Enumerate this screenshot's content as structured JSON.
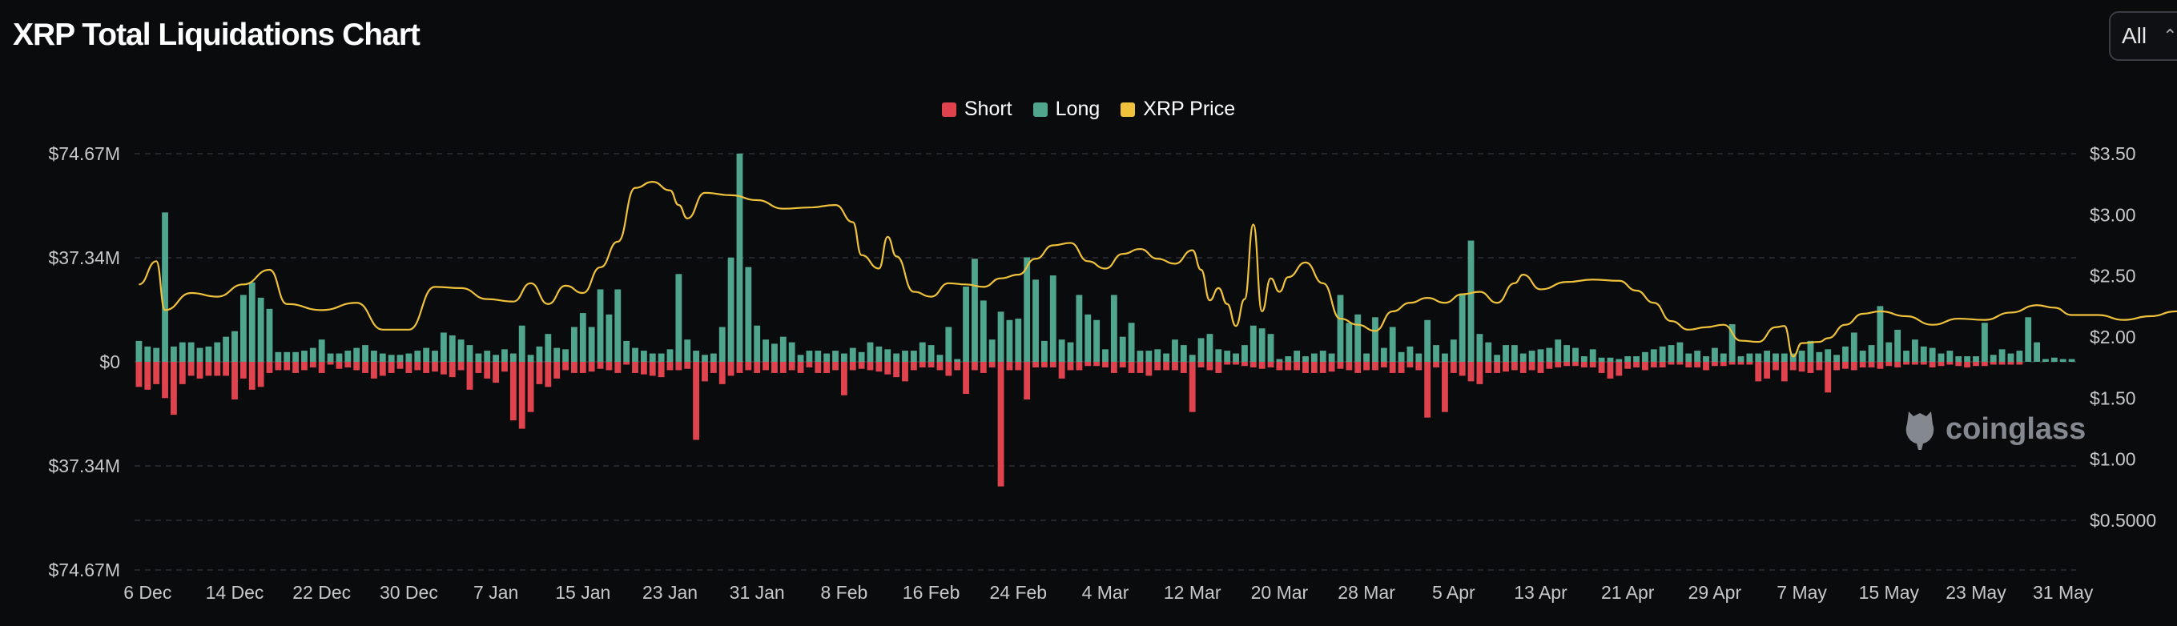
{
  "header": {
    "title": "XRP Total Liquidations Chart"
  },
  "range_select": {
    "value": "All"
  },
  "legend": [
    {
      "label": "Short",
      "color": "#e0434e"
    },
    {
      "label": "Long",
      "color": "#4fa58d"
    },
    {
      "label": "XRP Price",
      "color": "#f0c23b"
    }
  ],
  "watermark": {
    "text": "coinglass",
    "icon": "coinglass-logo-icon"
  },
  "colors": {
    "short": "#e0434e",
    "long": "#4fa58d",
    "price": "#f0c23b",
    "grid": "#2c2f36",
    "axis_text": "#c8c8c8"
  },
  "chart_data": {
    "type": "bar",
    "title": "XRP Total Liquidations Chart",
    "x_tick_labels": [
      "6 Dec",
      "14 Dec",
      "22 Dec",
      "30 Dec",
      "7 Jan",
      "15 Jan",
      "23 Jan",
      "31 Jan",
      "8 Feb",
      "16 Feb",
      "24 Feb",
      "4 Mar",
      "12 Mar",
      "20 Mar",
      "28 Mar",
      "5 Apr",
      "13 Apr",
      "21 Apr",
      "29 Apr",
      "7 May",
      "15 May",
      "23 May",
      "31 May"
    ],
    "y_left_tick_labels": [
      "$74.67M",
      "$37.34M",
      "$0",
      "$37.34M",
      "$74.67M"
    ],
    "y_left_range": [
      -74.67,
      74.67
    ],
    "y_right_tick_labels": [
      "$3.50",
      "$3.00",
      "$2.50",
      "$2.00",
      "$1.50",
      "$1.00",
      "$0.5000"
    ],
    "y_right_range": [
      0.1,
      3.5
    ],
    "grid": true,
    "legend_position": "top-center",
    "series": [
      {
        "name": "Long",
        "unit": "USD M",
        "values": [
          7.5,
          5.5,
          5.0,
          53.6,
          5.5,
          7.0,
          7.0,
          5.0,
          5.5,
          7.0,
          9.0,
          11.0,
          24.0,
          28.5,
          23.0,
          19.0,
          3.5,
          3.5,
          3.5,
          4.0,
          5.0,
          8.0,
          3.0,
          3.0,
          4.0,
          5.0,
          6.0,
          4.0,
          3.0,
          2.5,
          2.5,
          3.0,
          4.0,
          5.0,
          4.0,
          10.5,
          9.5,
          8.0,
          6.0,
          3.0,
          4.0,
          2.5,
          4.5,
          3.0,
          13.0,
          2.5,
          5.5,
          10.0,
          5.0,
          4.5,
          12.5,
          17.5,
          12.5,
          26.0,
          17.0,
          26.0,
          7.5,
          5.0,
          4.0,
          3.0,
          3.0,
          4.5,
          31.5,
          8.0,
          4.0,
          2.5,
          3.0,
          12.5,
          37.4,
          74.7,
          34.0,
          13.0,
          8.0,
          6.5,
          9.0,
          7.0,
          2.5,
          4.0,
          4.0,
          3.0,
          4.0,
          3.0,
          5.0,
          3.5,
          7.0,
          5.5,
          4.5,
          3.0,
          4.0,
          4.0,
          7.0,
          6.0,
          2.5,
          12.5,
          1.0,
          27.0,
          37.0,
          22.0,
          8.0,
          18.0,
          15.0,
          15.5,
          37.5,
          29.5,
          7.5,
          31.0,
          8.0,
          7.0,
          24.0,
          17.0,
          15.0,
          4.5,
          24.0,
          9.0,
          14.0,
          4.0,
          4.0,
          4.5,
          3.0,
          8.0,
          6.0,
          2.5,
          8.5,
          10.0,
          4.5,
          4.0,
          3.0,
          6.0,
          13.0,
          12.0,
          10.0,
          1.0,
          2.0,
          4.0,
          2.0,
          3.0,
          4.0,
          3.0,
          24.0,
          14.0,
          17.0,
          3.0,
          16.0,
          5.0,
          12.5,
          3.5,
          5.5,
          3.0,
          15.0,
          6.0,
          3.0,
          8.0,
          24.5,
          43.5,
          10.0,
          7.0,
          2.5,
          6.0,
          6.0,
          3.0,
          4.0,
          4.5,
          5.0,
          8.0,
          6.0,
          5.0,
          2.0,
          4.5,
          1.5,
          1.5,
          1.0,
          2.0,
          2.0,
          3.5,
          4.5,
          5.5,
          6.0,
          7.0,
          3.0,
          4.0,
          2.0,
          5.0,
          3.0,
          13.5,
          2.0,
          3.0,
          3.0,
          4.0,
          3.0,
          3.0,
          3.0,
          4.0,
          7.5,
          3.5,
          4.5,
          2.5,
          5.5,
          10.5,
          4.0,
          6.0,
          20.0,
          7.0,
          11.5,
          4.0,
          8.0,
          5.5,
          5.0,
          3.0,
          4.0,
          2.0,
          2.0,
          2.0,
          14.0,
          2.5,
          4.5,
          3.0,
          4.0,
          16.0,
          7.0,
          1.0,
          1.5,
          1.0,
          1.0
        ]
      },
      {
        "name": "Short",
        "unit": "USD M",
        "values": [
          9.0,
          10.0,
          8.0,
          13.0,
          19.0,
          8.0,
          5.0,
          6.0,
          5.0,
          5.0,
          5.0,
          13.5,
          6.0,
          10.0,
          9.0,
          4.0,
          3.0,
          3.0,
          4.0,
          3.0,
          2.0,
          4.0,
          1.0,
          2.5,
          2.0,
          3.0,
          4.0,
          6.0,
          5.0,
          4.0,
          2.5,
          4.0,
          3.0,
          4.0,
          3.5,
          4.5,
          5.5,
          3.0,
          10.0,
          4.0,
          6.0,
          7.5,
          3.5,
          21.0,
          24.0,
          18.0,
          8.0,
          9.0,
          6.0,
          3.0,
          4.0,
          4.0,
          3.5,
          2.5,
          3.0,
          4.0,
          1.0,
          4.0,
          4.5,
          5.0,
          5.5,
          3.0,
          3.0,
          2.5,
          28.0,
          7.0,
          4.0,
          8.0,
          5.0,
          4.0,
          3.0,
          4.0,
          3.0,
          4.0,
          4.0,
          3.0,
          4.0,
          2.0,
          4.0,
          4.0,
          3.0,
          12.0,
          3.0,
          2.5,
          3.0,
          3.5,
          4.5,
          5.5,
          7.0,
          3.0,
          2.0,
          2.0,
          3.0,
          5.0,
          3.0,
          11.5,
          3.0,
          4.0,
          2.0,
          44.7,
          3.0,
          3.0,
          13.5,
          2.0,
          2.0,
          2.0,
          6.0,
          3.0,
          3.0,
          1.5,
          1.5,
          2.0,
          4.0,
          2.0,
          4.0,
          4.0,
          5.0,
          3.0,
          3.0,
          3.0,
          4.0,
          18.0,
          2.0,
          3.0,
          4.0,
          1.0,
          1.0,
          1.5,
          2.0,
          2.5,
          2.0,
          3.0,
          3.0,
          3.0,
          4.0,
          4.0,
          4.0,
          3.5,
          2.5,
          3.0,
          4.0,
          3.0,
          3.0,
          2.0,
          4.0,
          4.0,
          2.0,
          3.0,
          20.0,
          2.0,
          18.0,
          4.0,
          5.0,
          7.0,
          8.0,
          4.0,
          4.0,
          3.5,
          3.0,
          4.0,
          3.0,
          4.0,
          2.5,
          2.0,
          1.5,
          1.5,
          2.0,
          2.0,
          4.0,
          6.0,
          5.0,
          2.5,
          2.0,
          3.0,
          2.0,
          2.0,
          1.0,
          1.0,
          2.0,
          2.0,
          3.0,
          1.5,
          1.5,
          1.0,
          1.0,
          1.0,
          7.0,
          6.0,
          3.0,
          7.0,
          3.0,
          3.5,
          4.0,
          3.0,
          11.0,
          3.0,
          2.5,
          3.0,
          2.0,
          2.0,
          2.5,
          1.5,
          2.0,
          1.0,
          1.0,
          1.0,
          2.0,
          1.5,
          1.0,
          1.5,
          2.0,
          1.5,
          1.5,
          1.0,
          1.0,
          1.0,
          1.0
        ]
      },
      {
        "name": "XRP Price",
        "unit": "USD",
        "axis": "right",
        "points": [
          [
            0,
            2.43
          ],
          [
            2,
            2.62
          ],
          [
            3,
            2.22
          ],
          [
            6,
            2.36
          ],
          [
            9,
            2.33
          ],
          [
            12,
            2.43
          ],
          [
            15,
            2.55
          ],
          [
            17,
            2.27
          ],
          [
            21,
            2.22
          ],
          [
            25,
            2.28
          ],
          [
            28,
            2.06
          ],
          [
            31,
            2.06
          ],
          [
            34,
            2.41
          ],
          [
            37,
            2.4
          ],
          [
            40,
            2.31
          ],
          [
            43,
            2.29
          ],
          [
            45,
            2.44
          ],
          [
            47,
            2.27
          ],
          [
            49,
            2.42
          ],
          [
            51,
            2.36
          ],
          [
            53,
            2.57
          ],
          [
            55,
            2.78
          ],
          [
            57,
            3.22
          ],
          [
            59,
            3.27
          ],
          [
            61,
            3.2
          ],
          [
            62,
            3.08
          ],
          [
            63,
            2.97
          ],
          [
            65,
            3.18
          ],
          [
            68,
            3.16
          ],
          [
            71,
            3.12
          ],
          [
            74,
            3.05
          ],
          [
            77,
            3.06
          ],
          [
            80,
            3.08
          ],
          [
            82,
            2.94
          ],
          [
            83,
            2.67
          ],
          [
            85,
            2.56
          ],
          [
            86,
            2.82
          ],
          [
            87,
            2.66
          ],
          [
            89,
            2.37
          ],
          [
            91,
            2.33
          ],
          [
            93,
            2.44
          ],
          [
            95,
            2.43
          ],
          [
            97,
            2.41
          ],
          [
            99,
            2.48
          ],
          [
            101,
            2.51
          ],
          [
            103,
            2.64
          ],
          [
            105,
            2.75
          ],
          [
            107,
            2.77
          ],
          [
            109,
            2.62
          ],
          [
            111,
            2.56
          ],
          [
            113,
            2.68
          ],
          [
            115,
            2.72
          ],
          [
            117,
            2.64
          ],
          [
            119,
            2.6
          ],
          [
            121,
            2.71
          ],
          [
            122,
            2.55
          ],
          [
            123,
            2.3
          ],
          [
            124,
            2.4
          ],
          [
            125,
            2.27
          ],
          [
            126,
            2.09
          ],
          [
            127,
            2.31
          ],
          [
            128,
            2.92
          ],
          [
            129,
            2.21
          ],
          [
            130,
            2.48
          ],
          [
            131,
            2.37
          ],
          [
            132,
            2.49
          ],
          [
            134,
            2.61
          ],
          [
            136,
            2.44
          ],
          [
            138,
            2.15
          ],
          [
            140,
            2.1
          ],
          [
            142,
            2.05
          ],
          [
            144,
            2.21
          ],
          [
            146,
            2.28
          ],
          [
            148,
            2.32
          ],
          [
            150,
            2.28
          ],
          [
            152,
            2.35
          ],
          [
            154,
            2.37
          ],
          [
            156,
            2.28
          ],
          [
            158,
            2.44
          ],
          [
            159,
            2.51
          ],
          [
            161,
            2.39
          ],
          [
            164,
            2.45
          ],
          [
            167,
            2.47
          ],
          [
            170,
            2.46
          ],
          [
            172,
            2.38
          ],
          [
            174,
            2.28
          ],
          [
            176,
            2.13
          ],
          [
            178,
            2.06
          ],
          [
            180,
            2.08
          ],
          [
            182,
            2.1
          ],
          [
            184,
            1.97
          ],
          [
            186,
            1.96
          ],
          [
            188,
            2.08
          ],
          [
            189,
            2.09
          ],
          [
            190,
            1.84
          ],
          [
            191,
            1.95
          ],
          [
            193,
            1.96
          ],
          [
            194,
            1.99
          ],
          [
            196,
            2.1
          ],
          [
            198,
            2.19
          ],
          [
            200,
            2.21
          ],
          [
            203,
            2.17
          ],
          [
            206,
            2.1
          ],
          [
            209,
            2.15
          ],
          [
            212,
            2.14
          ],
          [
            215,
            2.2
          ],
          [
            218,
            2.26
          ],
          [
            220,
            2.24
          ],
          [
            222,
            2.18
          ],
          [
            225,
            2.18
          ],
          [
            228,
            2.14
          ],
          [
            231,
            2.17
          ],
          [
            234,
            2.21
          ],
          [
            236,
            2.37
          ],
          [
            237,
            2.4
          ],
          [
            238,
            2.34
          ],
          [
            239,
            2.45
          ],
          [
            241,
            2.59
          ],
          [
            243,
            2.58
          ],
          [
            245,
            2.47
          ],
          [
            247,
            2.43
          ],
          [
            249,
            2.36
          ],
          [
            251,
            2.49
          ],
          [
            253,
            2.43
          ],
          [
            256,
            2.37
          ],
          [
            258,
            2.41
          ],
          [
            260,
            2.32
          ],
          [
            262,
            2.35
          ],
          [
            264,
            2.27
          ],
          [
            266,
            2.26
          ],
          [
            268,
            2.31
          ],
          [
            270,
            2.33
          ],
          [
            272,
            2.37
          ],
          [
            274,
            2.33
          ],
          [
            276,
            2.39
          ],
          [
            278,
            2.39
          ],
          [
            280,
            2.32
          ],
          [
            282,
            2.33
          ],
          [
            284,
            2.26
          ],
          [
            286,
            2.26
          ],
          [
            288,
            2.3
          ],
          [
            290,
            2.2
          ]
        ]
      }
    ]
  }
}
